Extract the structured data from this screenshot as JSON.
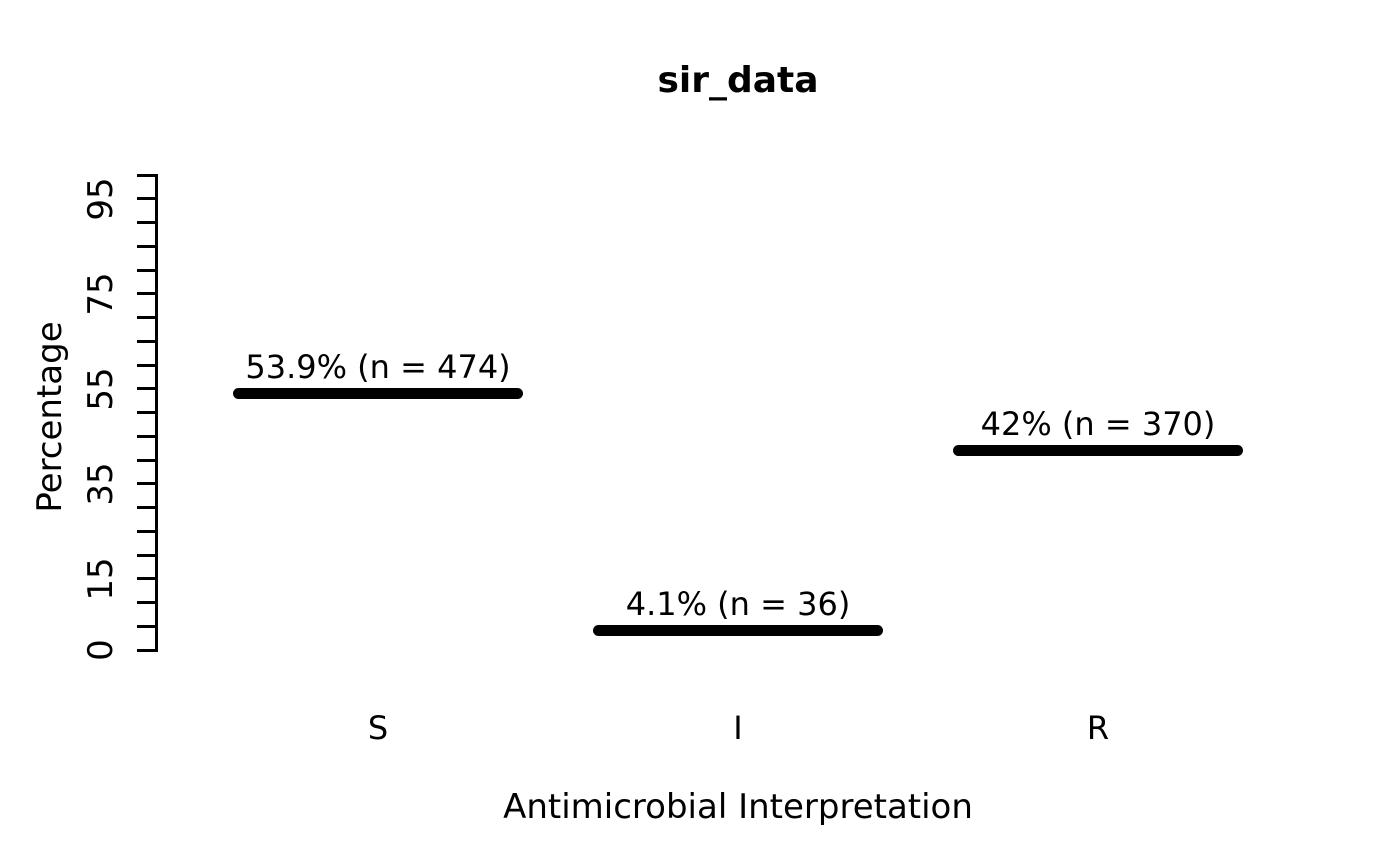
{
  "title": "sir_data",
  "colors": {
    "foreground": "#000000",
    "background": "#ffffff"
  },
  "y_axis": {
    "label": "Percentage",
    "labeled_ticks": [
      0,
      15,
      35,
      55,
      75,
      95
    ],
    "tick_interval": 5,
    "range": [
      0,
      100
    ]
  },
  "x_axis": {
    "label": "Antimicrobial Interpretation",
    "categories": [
      "S",
      "I",
      "R"
    ]
  },
  "chart_data": {
    "type": "bar",
    "style": "thick horizontal line segments (R base graphics plot)",
    "title": "sir_data",
    "xlabel": "Antimicrobial Interpretation",
    "ylabel": "Percentage",
    "categories": [
      "S",
      "I",
      "R"
    ],
    "values": [
      53.9,
      4.1,
      42
    ],
    "counts": [
      474,
      36,
      370
    ],
    "bar_labels": [
      "53.9% (n = 474)",
      "4.1% (n = 36)",
      "42% (n = 370)"
    ],
    "ylim": [
      0,
      100
    ],
    "y_tick_interval": 5,
    "y_labeled_ticks": [
      0,
      15,
      35,
      55,
      75,
      95
    ],
    "grid": false,
    "legend_position": "none"
  }
}
